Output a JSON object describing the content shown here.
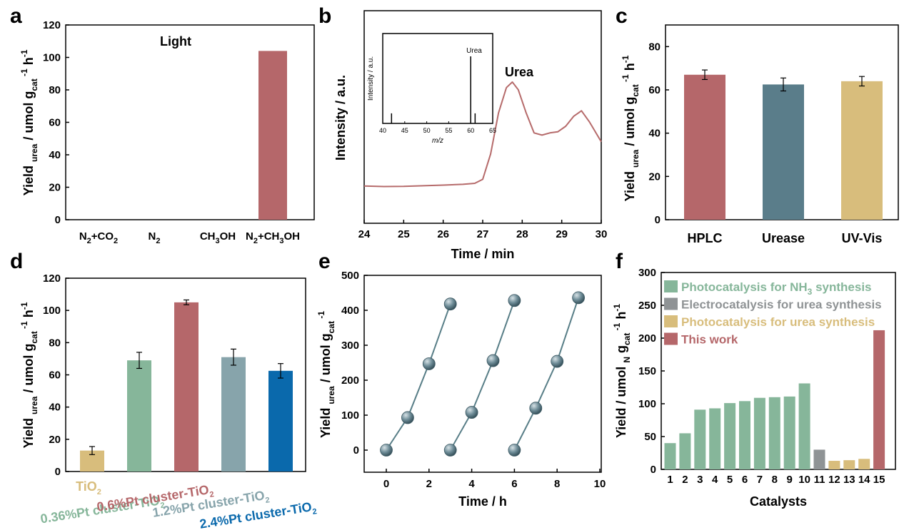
{
  "figure": {
    "panels": [
      "a",
      "b",
      "c",
      "d",
      "e",
      "f"
    ]
  },
  "colors": {
    "red": "#b5676a",
    "slate": "#5a7d8a",
    "tan": "#d8bd7c",
    "green": "#86b69a",
    "greyblue": "#87a4ab",
    "blue": "#0a69ac",
    "grey": "#8f9395",
    "teal": "#587e87",
    "tracered": "#b66b6b"
  },
  "chart_data": [
    {
      "panel": "a",
      "type": "bar",
      "categories": [
        "N₂+CO₂",
        "N₂",
        "CH₃OH",
        "N₂+CH₃OH"
      ],
      "values": [
        0,
        0,
        0,
        104
      ],
      "annotation": "Light",
      "ylabel_main": "Yield",
      "ylabel_sub1": "urea",
      "ylabel_unit": "/ umol g",
      "ylabel_sub2": "cat",
      "ylabel_sup1": "-1",
      "ylabel_unit2": "h",
      "ylabel_sup2": "-1",
      "ylim": [
        0,
        120
      ],
      "yticks": [
        "0",
        "20",
        "40",
        "60",
        "80",
        "100",
        "120"
      ]
    },
    {
      "panel": "b",
      "type": "line",
      "x": [
        24.0,
        24.5,
        25.0,
        25.5,
        26.0,
        26.5,
        26.8,
        27.0,
        27.2,
        27.4,
        27.6,
        27.75,
        27.9,
        28.1,
        28.3,
        28.5,
        28.7,
        28.9,
        29.1,
        29.3,
        29.5,
        29.7,
        30.0
      ],
      "y": [
        6,
        5.5,
        5.6,
        6.2,
        6.8,
        7.5,
        8.4,
        12,
        35,
        72,
        95,
        100,
        93,
        72,
        54,
        52,
        54,
        55,
        60,
        69,
        74,
        64,
        46
      ],
      "xlabel": "Time / min",
      "ylabel": "Intensity / a.u.",
      "xlim": [
        24,
        30
      ],
      "xticks": [
        "24",
        "25",
        "26",
        "27",
        "28",
        "29",
        "30"
      ],
      "annotation": "Urea",
      "inset": {
        "type": "bar",
        "x": [
          42,
          60,
          61
        ],
        "y": [
          0.15,
          1.0,
          0.15
        ],
        "xlabel": "m/z",
        "ylabel": "Intensity / a.u.",
        "annotation": "Urea",
        "xlim": [
          40,
          65
        ],
        "xticks": [
          "40",
          "45",
          "50",
          "55",
          "60",
          "65"
        ]
      }
    },
    {
      "panel": "c",
      "type": "bar",
      "categories": [
        "HPLC",
        "Urease",
        "UV-Vis"
      ],
      "values": [
        67,
        62.5,
        64
      ],
      "errors": [
        2.2,
        3.0,
        2.2
      ],
      "ylabel_main": "Yield",
      "ylabel_sub1": "urea",
      "ylabel_unit": "/ umol g",
      "ylabel_sub2": "cat",
      "ylabel_sup1": "-1",
      "ylabel_unit2": "h",
      "ylabel_sup2": "-1",
      "ylim": [
        0,
        90
      ],
      "yticks": [
        "0",
        "20",
        "40",
        "60",
        "80"
      ]
    },
    {
      "panel": "d",
      "type": "bar",
      "categories": [
        "TiO₂",
        "0.36%Pt cluster-TiO₂",
        "0.6%Pt cluster-TiO₂",
        "1.2%Pt cluster-TiO₂",
        "2.4%Pt cluster-TiO₂"
      ],
      "values": [
        13,
        69,
        105,
        71,
        62.5
      ],
      "errors": [
        2.5,
        5,
        1.5,
        5,
        4.5
      ],
      "ylabel_main": "Yield",
      "ylabel_sub1": "urea",
      "ylabel_unit": "/ umol g",
      "ylabel_sub2": "cat",
      "ylabel_sup1": "-1",
      "ylabel_unit2": "h",
      "ylabel_sup2": "-1",
      "ylim": [
        0,
        120
      ],
      "yticks": [
        "0",
        "20",
        "40",
        "60",
        "80",
        "100",
        "120"
      ]
    },
    {
      "panel": "e",
      "type": "line",
      "series": [
        {
          "x": [
            0,
            1,
            2,
            3
          ],
          "y": [
            0,
            93,
            247,
            418
          ]
        },
        {
          "x": [
            3,
            4,
            5,
            6
          ],
          "y": [
            0,
            108,
            256,
            428
          ]
        },
        {
          "x": [
            6,
            7,
            8,
            9
          ],
          "y": [
            0,
            120,
            254,
            436
          ]
        }
      ],
      "xlabel": "Time / h",
      "ylabel_main": "Yield",
      "ylabel_sub1": "urea",
      "ylabel_unit": "/ umol g",
      "ylabel_sub2": "cat",
      "ylabel_sup1": "-1",
      "xlim": [
        -1,
        10
      ],
      "ylim": [
        -30,
        500
      ],
      "xticks": [
        "0",
        "2",
        "4",
        "6",
        "8",
        "10"
      ],
      "yticks": [
        "0",
        "100",
        "200",
        "300",
        "400",
        "500"
      ]
    },
    {
      "panel": "f",
      "type": "bar",
      "categories": [
        "1",
        "2",
        "3",
        "4",
        "5",
        "6",
        "7",
        "8",
        "9",
        "10",
        "11",
        "12",
        "13",
        "14",
        "15"
      ],
      "values": [
        40,
        55,
        91,
        93,
        101,
        104,
        109,
        110,
        111,
        131,
        30,
        13,
        14,
        16,
        212
      ],
      "groups": [
        "nh3",
        "nh3",
        "nh3",
        "nh3",
        "nh3",
        "nh3",
        "nh3",
        "nh3",
        "nh3",
        "nh3",
        "elec",
        "photo",
        "photo",
        "photo",
        "this"
      ],
      "legend": [
        {
          "key": "nh3",
          "label_pre": "Photocatalysis for NH",
          "label_sub": "3",
          "label_post": " synthesis"
        },
        {
          "key": "elec",
          "label_pre": "Electrocatalysis for urea synthesis",
          "label_sub": "",
          "label_post": ""
        },
        {
          "key": "photo",
          "label_pre": "Photocatalysis for urea synthesis",
          "label_sub": "",
          "label_post": ""
        },
        {
          "key": "this",
          "label_pre": "This work",
          "label_sub": "",
          "label_post": ""
        }
      ],
      "legend_position": "top-left",
      "xlabel": "Catalysts",
      "ylabel_main": "Yield / umol",
      "ylabel_sub1": "N",
      "ylabel_unit": " g",
      "ylabel_sub2": "cat",
      "ylabel_sup1": "-1",
      "ylabel_unit2": "h",
      "ylabel_sup2": "-1",
      "ylim": [
        0,
        300
      ],
      "yticks": [
        "0",
        "50",
        "100",
        "150",
        "200",
        "250",
        "300"
      ]
    }
  ]
}
